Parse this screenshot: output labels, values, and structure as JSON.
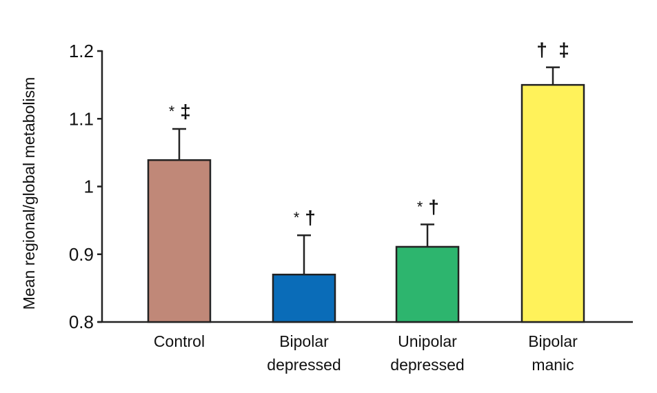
{
  "chart_data": {
    "type": "bar",
    "title": "",
    "xlabel": "",
    "ylabel": "Mean regional/global metabolism",
    "ylim": [
      0.8,
      1.2
    ],
    "yticks": [
      0.8,
      0.9,
      1,
      1.1,
      1.2
    ],
    "ytick_labels": [
      "0.8",
      "0.9",
      "1",
      "1.1",
      "1.2"
    ],
    "grid": false,
    "categories": [
      [
        "Control"
      ],
      [
        "Bipolar",
        "depressed"
      ],
      [
        "Unipolar",
        "depressed"
      ],
      [
        "Bipolar",
        "manic"
      ]
    ],
    "values": [
      1.039,
      0.87,
      0.911,
      1.15
    ],
    "error_upper": [
      1.085,
      0.928,
      0.944,
      1.176
    ],
    "colors": [
      "#c08878",
      "#0a6cb8",
      "#2db56e",
      "#fff25a"
    ],
    "annotations": [
      [
        "*",
        "‡"
      ],
      [
        "*",
        "†"
      ],
      [
        "*",
        "†"
      ],
      [
        "†",
        "‡"
      ]
    ]
  }
}
